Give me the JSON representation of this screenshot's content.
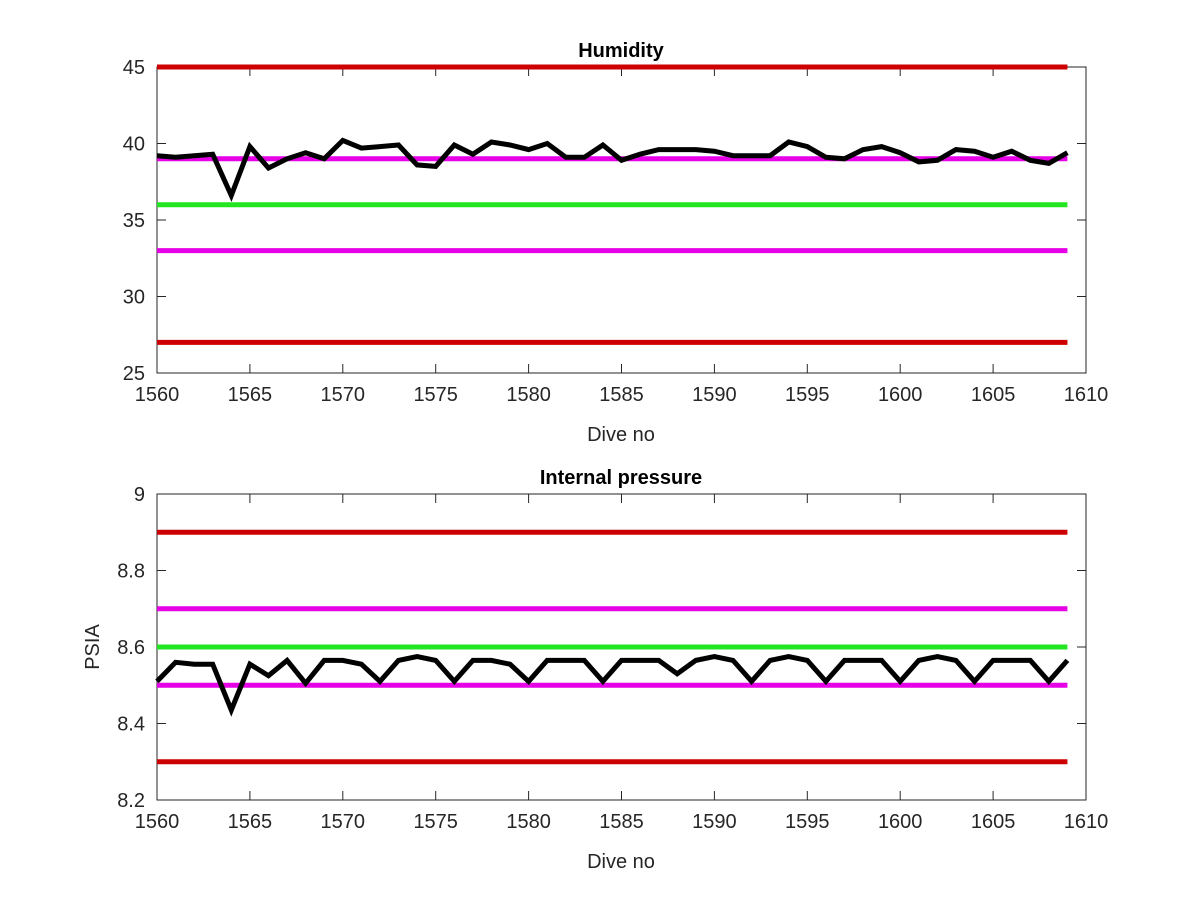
{
  "colors": {
    "data_line": "#000000",
    "outer_limit": "#cc0000",
    "inner_limit": "#e600e6",
    "target": "#22e622",
    "axis": "#262626",
    "background": "#ffffff"
  },
  "chart_data": [
    {
      "type": "line",
      "title": "Humidity",
      "xlabel": "Dive no",
      "ylabel": "",
      "xlim": [
        1560,
        1610
      ],
      "ylim": [
        25,
        45
      ],
      "xticks": [
        1560,
        1565,
        1570,
        1575,
        1580,
        1585,
        1590,
        1595,
        1600,
        1605,
        1610
      ],
      "yticks": [
        25,
        30,
        35,
        40,
        45
      ],
      "grid": false,
      "legend": "none",
      "reference_lines": [
        {
          "y": 45,
          "x": [
            1560,
            1609
          ],
          "color_key": "outer_limit"
        },
        {
          "y": 27,
          "x": [
            1560,
            1609
          ],
          "color_key": "outer_limit"
        },
        {
          "y": 39,
          "x": [
            1560,
            1609
          ],
          "color_key": "inner_limit"
        },
        {
          "y": 33,
          "x": [
            1560,
            1609
          ],
          "color_key": "inner_limit"
        },
        {
          "y": 36,
          "x": [
            1560,
            1609
          ],
          "color_key": "target"
        }
      ],
      "series": [
        {
          "x": [
            1560,
            1561,
            1562,
            1563,
            1564,
            1565,
            1566,
            1567,
            1568,
            1569,
            1570,
            1571,
            1572,
            1573,
            1574,
            1575,
            1576,
            1577,
            1578,
            1579,
            1580,
            1581,
            1582,
            1583,
            1584,
            1585,
            1586,
            1587,
            1588,
            1589,
            1590,
            1591,
            1592,
            1593,
            1594,
            1595,
            1596,
            1597,
            1598,
            1599,
            1600,
            1601,
            1602,
            1603,
            1604,
            1605,
            1606,
            1607,
            1608,
            1609
          ],
          "values": [
            39.2,
            39.1,
            39.2,
            39.3,
            36.6,
            39.8,
            38.4,
            39.0,
            39.4,
            39.0,
            40.2,
            39.7,
            39.8,
            39.9,
            38.6,
            38.5,
            39.9,
            39.3,
            40.1,
            39.9,
            39.6,
            40.0,
            39.1,
            39.1,
            39.9,
            38.9,
            39.3,
            39.6,
            39.6,
            39.6,
            39.5,
            39.2,
            39.2,
            39.2,
            40.1,
            39.8,
            39.1,
            39.0,
            39.6,
            39.8,
            39.4,
            38.8,
            38.9,
            39.6,
            39.5,
            39.1,
            39.5,
            38.9,
            38.7,
            39.4
          ]
        }
      ]
    },
    {
      "type": "line",
      "title": "Internal pressure",
      "xlabel": "Dive no",
      "ylabel": "PSIA",
      "xlim": [
        1560,
        1610
      ],
      "ylim": [
        8.2,
        9
      ],
      "xticks": [
        1560,
        1565,
        1570,
        1575,
        1580,
        1585,
        1590,
        1595,
        1600,
        1605,
        1610
      ],
      "yticks": [
        8.2,
        8.4,
        8.6,
        8.8,
        9
      ],
      "grid": false,
      "legend": "none",
      "reference_lines": [
        {
          "y": 8.9,
          "x": [
            1560,
            1609
          ],
          "color_key": "outer_limit"
        },
        {
          "y": 8.3,
          "x": [
            1560,
            1609
          ],
          "color_key": "outer_limit"
        },
        {
          "y": 8.7,
          "x": [
            1560,
            1609
          ],
          "color_key": "inner_limit"
        },
        {
          "y": 8.5,
          "x": [
            1560,
            1609
          ],
          "color_key": "inner_limit"
        },
        {
          "y": 8.6,
          "x": [
            1560,
            1609
          ],
          "color_key": "target"
        }
      ],
      "series": [
        {
          "x": [
            1560,
            1561,
            1562,
            1563,
            1564,
            1565,
            1566,
            1567,
            1568,
            1569,
            1570,
            1571,
            1572,
            1573,
            1574,
            1575,
            1576,
            1577,
            1578,
            1579,
            1580,
            1581,
            1582,
            1583,
            1584,
            1585,
            1586,
            1587,
            1588,
            1589,
            1590,
            1591,
            1592,
            1593,
            1594,
            1595,
            1596,
            1597,
            1598,
            1599,
            1600,
            1601,
            1602,
            1603,
            1604,
            1605,
            1606,
            1607,
            1608,
            1609
          ],
          "values": [
            8.51,
            8.56,
            8.555,
            8.555,
            8.435,
            8.555,
            8.525,
            8.565,
            8.505,
            8.565,
            8.565,
            8.555,
            8.51,
            8.565,
            8.575,
            8.565,
            8.51,
            8.565,
            8.565,
            8.555,
            8.51,
            8.565,
            8.565,
            8.565,
            8.51,
            8.565,
            8.565,
            8.565,
            8.53,
            8.565,
            8.575,
            8.565,
            8.51,
            8.565,
            8.575,
            8.565,
            8.51,
            8.565,
            8.565,
            8.565,
            8.51,
            8.565,
            8.575,
            8.565,
            8.51,
            8.565,
            8.565,
            8.565,
            8.51,
            8.565
          ]
        }
      ]
    }
  ]
}
